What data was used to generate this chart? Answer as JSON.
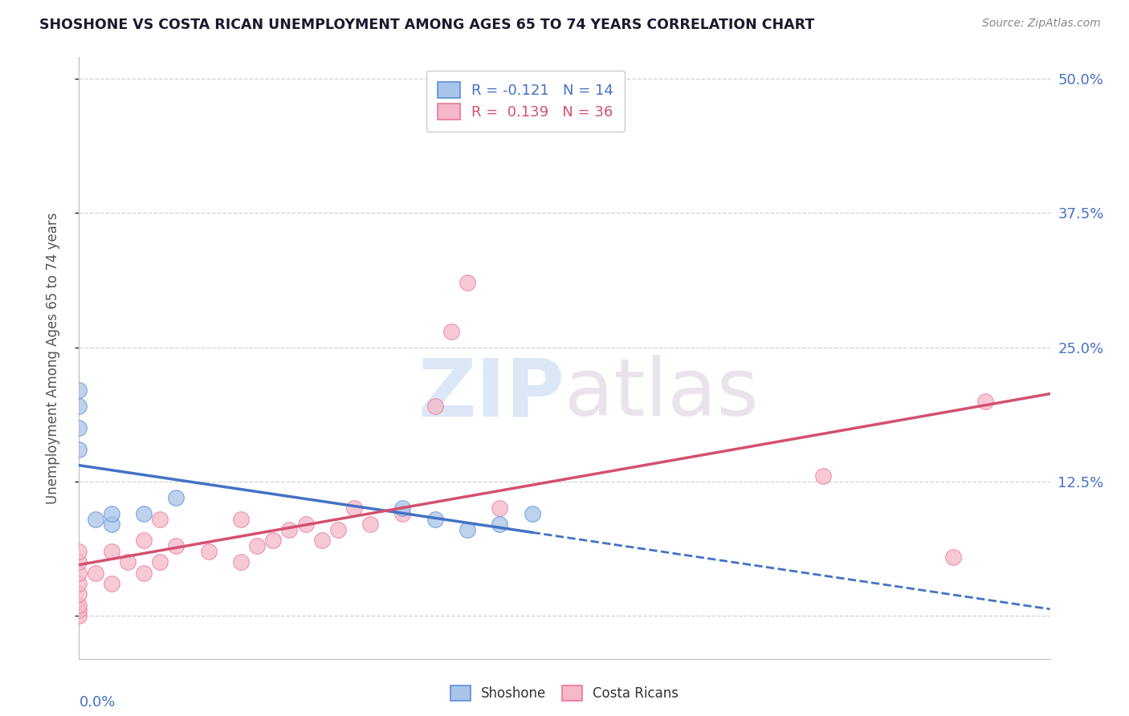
{
  "title": "SHOSHONE VS COSTA RICAN UNEMPLOYMENT AMONG AGES 65 TO 74 YEARS CORRELATION CHART",
  "source": "Source: ZipAtlas.com",
  "ylabel": "Unemployment Among Ages 65 to 74 years",
  "x_min": 0.0,
  "x_max": 0.3,
  "y_min": -0.04,
  "y_max": 0.52,
  "yticks": [
    0.0,
    0.125,
    0.25,
    0.375,
    0.5
  ],
  "ytick_labels": [
    "",
    "12.5%",
    "25.0%",
    "37.5%",
    "50.0%"
  ],
  "shoshone_color": "#a8c4e8",
  "costa_rican_color": "#f5b8c8",
  "shoshone_edge_color": "#5b8dd9",
  "costa_rican_edge_color": "#e8789a",
  "shoshone_line_color": "#4472c4",
  "costa_rican_line_color": "#d45070",
  "legend_R_shoshone": "-0.121",
  "legend_N_shoshone": "14",
  "legend_R_costa": "0.139",
  "legend_N_costa": "36",
  "shoshone_x": [
    0.0,
    0.0,
    0.0,
    0.0,
    0.005,
    0.01,
    0.01,
    0.02,
    0.03,
    0.1,
    0.11,
    0.12,
    0.13,
    0.14
  ],
  "shoshone_y": [
    0.155,
    0.175,
    0.195,
    0.21,
    0.09,
    0.085,
    0.095,
    0.095,
    0.11,
    0.1,
    0.09,
    0.08,
    0.085,
    0.095
  ],
  "costa_rican_x": [
    0.0,
    0.0,
    0.0,
    0.0,
    0.0,
    0.0,
    0.0,
    0.0,
    0.005,
    0.01,
    0.01,
    0.015,
    0.02,
    0.02,
    0.025,
    0.025,
    0.03,
    0.04,
    0.05,
    0.05,
    0.055,
    0.06,
    0.065,
    0.07,
    0.075,
    0.08,
    0.085,
    0.09,
    0.1,
    0.11,
    0.115,
    0.12,
    0.13,
    0.23,
    0.27,
    0.28
  ],
  "costa_rican_y": [
    0.0,
    0.005,
    0.01,
    0.02,
    0.03,
    0.04,
    0.05,
    0.06,
    0.04,
    0.03,
    0.06,
    0.05,
    0.04,
    0.07,
    0.05,
    0.09,
    0.065,
    0.06,
    0.05,
    0.09,
    0.065,
    0.07,
    0.08,
    0.085,
    0.07,
    0.08,
    0.1,
    0.085,
    0.095,
    0.195,
    0.265,
    0.31,
    0.1,
    0.13,
    0.055,
    0.2
  ],
  "background_color": "#ffffff",
  "grid_color": "#cccccc",
  "title_color": "#1a1a2e",
  "source_color": "#888888",
  "axis_color": "#4472c4"
}
